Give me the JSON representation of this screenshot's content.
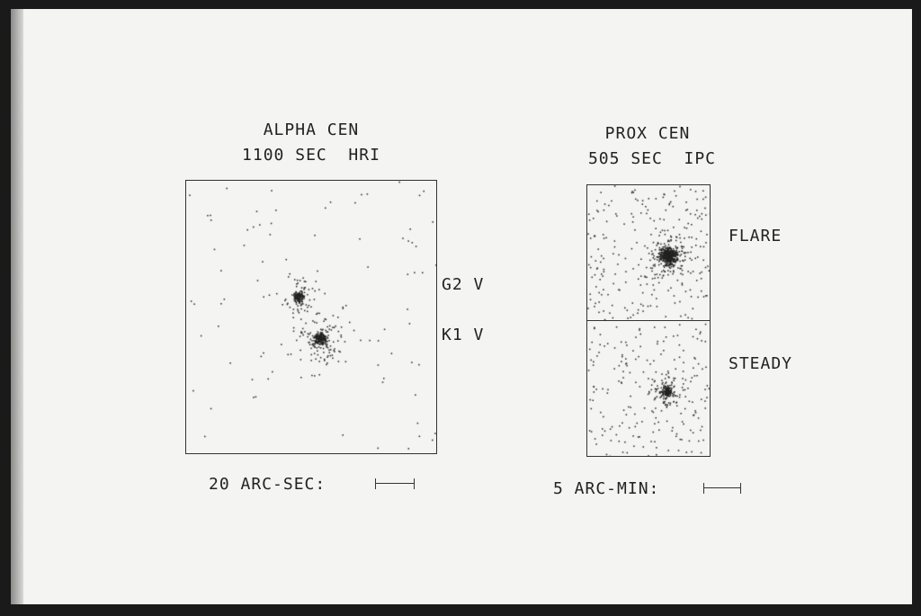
{
  "left_panel": {
    "title": "ALPHA CEN",
    "subtitle": "1100 SEC  HRI",
    "labels": [
      "G2 V",
      "K1 V"
    ],
    "scale_label": "20 ARC-SEC:"
  },
  "right_panel": {
    "title": "PROX CEN",
    "subtitle": "505 SEC  IPC",
    "labels": [
      "FLARE",
      "STEADY"
    ],
    "scale_label": "5 ARC-MIN:"
  }
}
